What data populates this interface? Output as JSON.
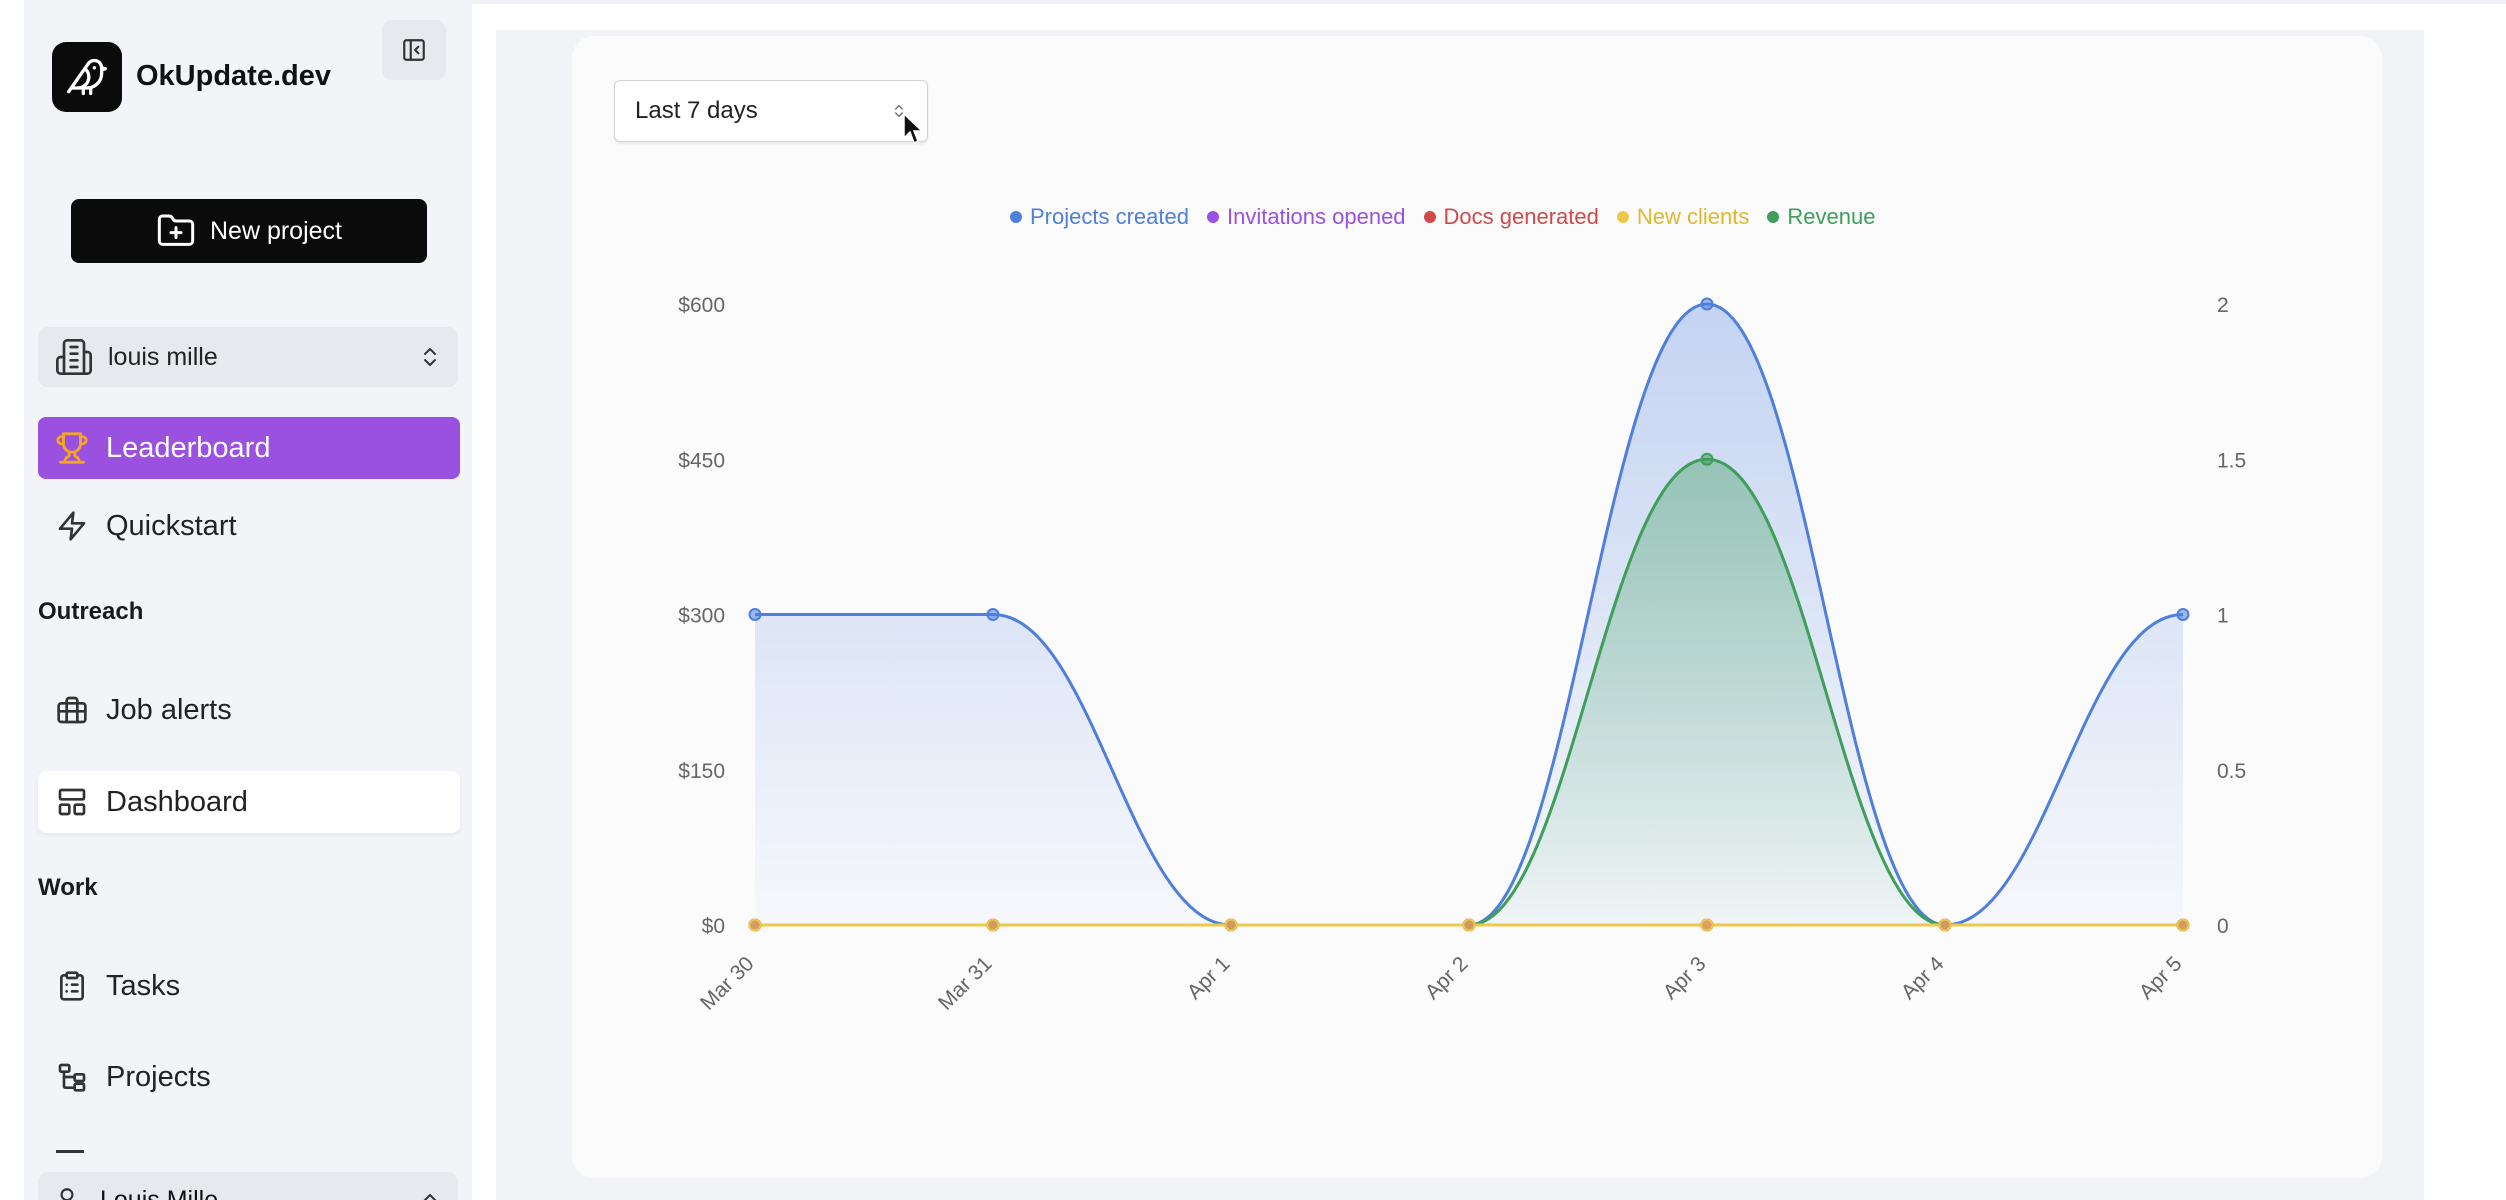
{
  "app": {
    "name": "OkUpdate.dev"
  },
  "sidebar": {
    "new_project_label": "New project",
    "org_name": "louis mille",
    "nav": [
      {
        "label": "Leaderboard",
        "icon": "trophy-icon"
      },
      {
        "label": "Quickstart",
        "icon": "lightning-icon"
      }
    ],
    "sections": [
      {
        "title": "Outreach",
        "items": [
          {
            "label": "Job alerts",
            "icon": "briefcase-icon"
          },
          {
            "label": "Dashboard",
            "icon": "dashboard-icon"
          }
        ]
      },
      {
        "title": "Work",
        "items": [
          {
            "label": "Tasks",
            "icon": "clipboard-icon"
          },
          {
            "label": "Projects",
            "icon": "hierarchy-icon"
          }
        ]
      }
    ],
    "user_name": "Louis Mille"
  },
  "range_select": {
    "value": "Last 7 days"
  },
  "colors": {
    "purple_accent": "#9b51e0",
    "blue": "#4f7fdc",
    "violet": "#9b51e0",
    "red": "#d04a4a",
    "yellow": "#ecc94b",
    "green": "#3e9e5a"
  },
  "chart_data": {
    "type": "area",
    "categories": [
      "Mar 30",
      "Mar 31",
      "Apr 1",
      "Apr 2",
      "Apr 3",
      "Apr 4",
      "Apr 5"
    ],
    "legend_position": "top-center",
    "y_left": {
      "ticks": [
        "$0",
        "$150",
        "$300",
        "$450",
        "$600"
      ],
      "range": [
        0,
        600
      ]
    },
    "y_right": {
      "ticks": [
        "0",
        "0.5",
        "1",
        "1.5",
        "2"
      ],
      "range": [
        0,
        2
      ]
    },
    "series": [
      {
        "name": "Projects created",
        "axis": "right",
        "color": "#4f7fdc",
        "values": [
          1,
          1,
          0,
          0,
          2,
          0,
          1
        ],
        "filled": true
      },
      {
        "name": "Invitations opened",
        "axis": "right",
        "color": "#9b51e0",
        "values": [
          0,
          0,
          0,
          0,
          0,
          0,
          0
        ],
        "filled": false
      },
      {
        "name": "Docs generated",
        "axis": "right",
        "color": "#d04a4a",
        "values": [
          0,
          0,
          0,
          0,
          0,
          0,
          0
        ],
        "filled": false
      },
      {
        "name": "New clients",
        "axis": "right",
        "color": "#ecc94b",
        "values": [
          0,
          0,
          0,
          0,
          0,
          0,
          0
        ],
        "filled": false
      },
      {
        "name": "Revenue",
        "axis": "left",
        "color": "#3e9e5a",
        "values": [
          0,
          0,
          0,
          0,
          450,
          0,
          0
        ],
        "filled": true
      }
    ]
  }
}
